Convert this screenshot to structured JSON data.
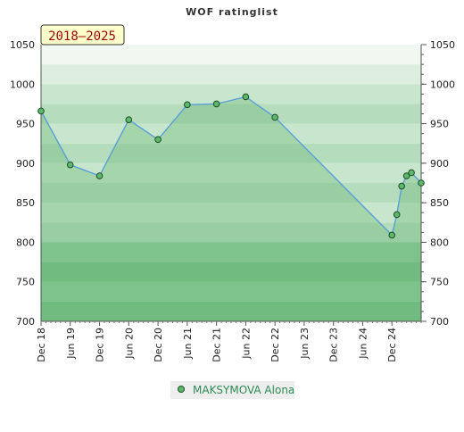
{
  "chart_data": {
    "type": "area",
    "title": "WOF ratinglist",
    "period_label": "2018–2025",
    "x_tick_labels": [
      "Dec 18",
      "Jun 19",
      "Dec 19",
      "Jun 20",
      "Dec 20",
      "Jun 21",
      "Dec 21",
      "Jun 22",
      "Dec 22",
      "Jun 23",
      "Dec 23",
      "Jun 24",
      "Dec 24"
    ],
    "ylim": [
      700,
      1050
    ],
    "y_ticks": [
      700,
      750,
      800,
      850,
      900,
      950,
      1000,
      1050
    ],
    "y_axis_both_sides": true,
    "grid": "horizontal bands",
    "legend_position": "bottom-center",
    "series": [
      {
        "name": "MAKSYMOVA Alona",
        "points": [
          {
            "x": "Dec 18",
            "y": 966
          },
          {
            "x": "Jun 19",
            "y": 898
          },
          {
            "x": "Dec 19",
            "y": 884
          },
          {
            "x": "Jun 20",
            "y": 955
          },
          {
            "x": "Dec 20",
            "y": 930
          },
          {
            "x": "Jun 21",
            "y": 974
          },
          {
            "x": "Dec 21",
            "y": 975
          },
          {
            "x": "Jun 22",
            "y": 984
          },
          {
            "x": "Dec 22",
            "y": 958
          },
          {
            "x": "Dec 24",
            "y": 809
          },
          {
            "x": "Jan 25",
            "y": 835
          },
          {
            "x": "Feb 25",
            "y": 871
          },
          {
            "x": "Mar 25",
            "y": 884
          },
          {
            "x": "Apr 25",
            "y": 888
          },
          {
            "x": "Jun 25",
            "y": 875
          }
        ]
      }
    ],
    "colors": {
      "line": "#5aa0d8",
      "marker_fill": "#5cb86a",
      "marker_stroke": "#1f4d27",
      "band_light_1": "#f1f8f1",
      "band_light_2": "#dcefdf",
      "band_mid_1": "#c8e6cd",
      "band_mid_2": "#b5dcbd",
      "band_dark_1": "#8ecb9c",
      "band_dark_2": "#79c18b",
      "area_overlay": "rgba(96,180,110,0.35)",
      "legend_bg": "#eeeeee",
      "period_bg": "#ffffcc"
    }
  }
}
